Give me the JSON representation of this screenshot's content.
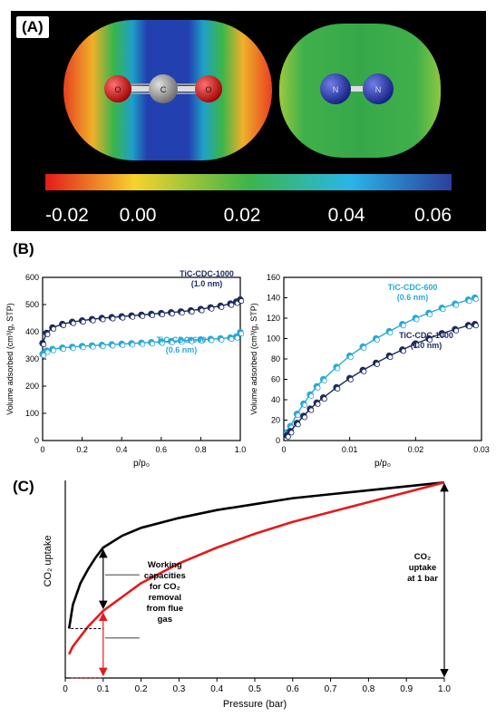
{
  "panel_a": {
    "label": "(A)",
    "colorbar_ticks": [
      "-0.02",
      "0.00",
      "0.02",
      "0.04",
      "0.06"
    ],
    "co2_atoms": [
      "O",
      "C",
      "O"
    ],
    "n2_atoms": [
      "N",
      "N"
    ],
    "colors": {
      "background": "#000000",
      "oxygen": "#d01818",
      "carbon": "#9a9a9a",
      "nitrogen": "#2a3fb0"
    }
  },
  "panel_b": {
    "label": "(B)"
  },
  "panel_c": {
    "label": "(C)"
  },
  "chart_data": [
    {
      "type": "scatter",
      "title": "",
      "xlabel": "p/p₀",
      "ylabel": "Volume adsorbed (cm³/g, STP)",
      "xlim": [
        0,
        1.0
      ],
      "ylim": [
        0,
        600
      ],
      "xticks": [
        "0",
        "0.2",
        "0.4",
        "0.6",
        "0.8",
        "1.0"
      ],
      "yticks": [
        "0",
        "100",
        "200",
        "300",
        "400",
        "500",
        "600"
      ],
      "series": [
        {
          "name": "TiC-CDC-1000",
          "annotation_lines": [
            "TiC-CDC-1000",
            "(1.0 nm)"
          ],
          "color": "#1c2a5e",
          "x": [
            0.0,
            0.02,
            0.05,
            0.1,
            0.15,
            0.2,
            0.25,
            0.3,
            0.35,
            0.4,
            0.45,
            0.5,
            0.55,
            0.6,
            0.65,
            0.7,
            0.75,
            0.8,
            0.85,
            0.9,
            0.95,
            0.98,
            1.0
          ],
          "y": [
            358,
            395,
            415,
            428,
            436,
            441,
            446,
            450,
            453,
            456,
            459,
            462,
            465,
            468,
            471,
            474,
            478,
            483,
            489,
            495,
            503,
            510,
            518
          ]
        },
        {
          "name": "TiC-CDC-600",
          "annotation_lines": [
            "TiC-CDC-600",
            "(0.6 nm)"
          ],
          "color": "#2aa8d8",
          "x": [
            0.0,
            0.02,
            0.05,
            0.1,
            0.15,
            0.2,
            0.25,
            0.3,
            0.35,
            0.4,
            0.45,
            0.5,
            0.55,
            0.6,
            0.65,
            0.7,
            0.75,
            0.8,
            0.85,
            0.9,
            0.95,
            0.98,
            1.0
          ],
          "y": [
            318,
            330,
            336,
            341,
            344,
            347,
            349,
            351,
            353,
            355,
            357,
            359,
            361,
            363,
            365,
            367,
            369,
            371,
            373,
            375,
            378,
            382,
            398
          ]
        }
      ]
    },
    {
      "type": "scatter",
      "title": "",
      "xlabel": "p/p₀",
      "ylabel": "Volume adsorbed (cm³/g, STP)",
      "xlim": [
        0,
        0.03
      ],
      "ylim": [
        0,
        160
      ],
      "xticks": [
        "0",
        "0.01",
        "0.02",
        "0.03"
      ],
      "yticks": [
        "0",
        "20",
        "40",
        "60",
        "80",
        "100",
        "120",
        "140",
        "160"
      ],
      "series": [
        {
          "name": "TiC-CDC-600",
          "annotation_lines": [
            "TiC-CDC-600",
            "(0.6 nm)"
          ],
          "color": "#2aa8d8",
          "x": [
            0.0005,
            0.001,
            0.002,
            0.003,
            0.004,
            0.005,
            0.006,
            0.008,
            0.01,
            0.012,
            0.014,
            0.016,
            0.018,
            0.02,
            0.022,
            0.024,
            0.026,
            0.028,
            0.029
          ],
          "y": [
            8,
            14,
            26,
            36,
            45,
            53,
            60,
            72,
            83,
            92,
            100,
            107,
            114,
            120,
            125,
            130,
            134,
            138,
            140
          ]
        },
        {
          "name": "TiC-CDC-1000",
          "annotation_lines": [
            "TiC-CDC-1000",
            "(1.0 nm)"
          ],
          "color": "#1c2a5e",
          "x": [
            0.0005,
            0.001,
            0.002,
            0.003,
            0.004,
            0.005,
            0.006,
            0.008,
            0.01,
            0.012,
            0.014,
            0.016,
            0.018,
            0.02,
            0.022,
            0.024,
            0.026,
            0.028,
            0.029
          ],
          "y": [
            5,
            9,
            17,
            24,
            31,
            37,
            42,
            52,
            61,
            69,
            76,
            83,
            89,
            95,
            100,
            105,
            109,
            113,
            114
          ]
        }
      ]
    },
    {
      "type": "line",
      "title": "",
      "xlabel": "Pressure (bar)",
      "ylabel": "CO₂ uptake",
      "xlim": [
        0,
        1.0
      ],
      "xticks": [
        "0",
        "0.1",
        "0.2",
        "0.3",
        "0.4",
        "0.5",
        "0.6",
        "0.7",
        "0.8",
        "0.9",
        "1.0"
      ],
      "series": [
        {
          "color": "#000000",
          "x": [
            0.01,
            0.02,
            0.04,
            0.06,
            0.08,
            0.1,
            0.15,
            0.2,
            0.3,
            0.4,
            0.5,
            0.6,
            0.7,
            0.8,
            0.9,
            1.0
          ],
          "y": [
            0.25,
            0.37,
            0.48,
            0.55,
            0.61,
            0.66,
            0.72,
            0.76,
            0.81,
            0.85,
            0.88,
            0.91,
            0.93,
            0.95,
            0.97,
            0.99
          ]
        },
        {
          "color": "#e31a1c",
          "x": [
            0.01,
            0.02,
            0.04,
            0.06,
            0.08,
            0.1,
            0.15,
            0.2,
            0.3,
            0.4,
            0.5,
            0.6,
            0.7,
            0.8,
            0.9,
            1.0
          ],
          "y": [
            0.12,
            0.16,
            0.21,
            0.26,
            0.3,
            0.34,
            0.41,
            0.48,
            0.58,
            0.66,
            0.73,
            0.79,
            0.84,
            0.89,
            0.94,
            0.99
          ]
        }
      ],
      "annotations": {
        "working_capacity_lines": [
          "Working",
          "capacities",
          "for CO₂",
          "removal",
          "from flue",
          "gas"
        ],
        "uptake_lines": [
          "CO₂",
          "uptake",
          "at 1 bar"
        ]
      }
    }
  ]
}
